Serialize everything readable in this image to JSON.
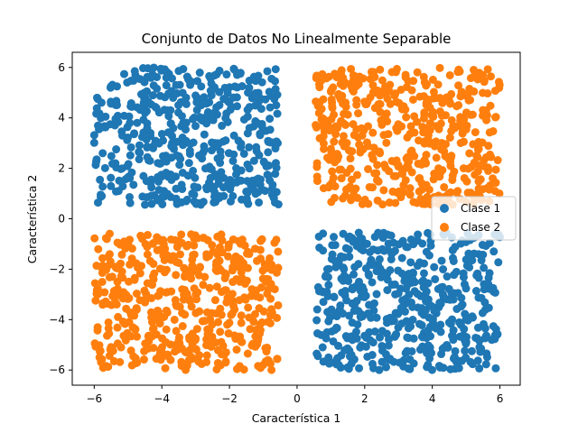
{
  "chart_data": {
    "type": "scatter",
    "title": "Conjunto de Datos No Linealmente Separable",
    "xlabel": "Característica 1",
    "ylabel": "Característica 2",
    "xlim": [
      -6.65,
      6.6
    ],
    "ylim": [
      -6.6,
      6.6
    ],
    "xticks": [
      -6,
      -4,
      -2,
      0,
      2,
      4,
      6
    ],
    "yticks": [
      -6,
      -4,
      -2,
      0,
      2,
      4,
      6
    ],
    "grid": false,
    "legend_position": "right",
    "series": [
      {
        "name": "Clase 1",
        "color": "#1f77b4",
        "regions": [
          {
            "x": [
              -6.0,
              -0.55
            ],
            "y": [
              0.55,
              6.0
            ],
            "count": 500
          },
          {
            "x": [
              0.55,
              6.0
            ],
            "y": [
              -6.0,
              -0.55
            ],
            "count": 500
          }
        ]
      },
      {
        "name": "Clase 2",
        "color": "#ff7f0e",
        "regions": [
          {
            "x": [
              0.55,
              6.0
            ],
            "y": [
              0.55,
              6.0
            ],
            "count": 500
          },
          {
            "x": [
              -6.0,
              -0.55
            ],
            "y": [
              -6.0,
              -0.55
            ],
            "count": 500
          }
        ]
      }
    ]
  }
}
